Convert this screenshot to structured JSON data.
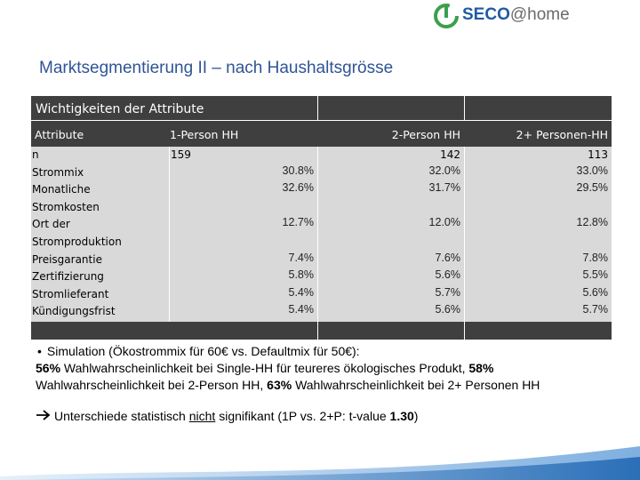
{
  "logo": {
    "brand": "SECO",
    "suffix": "@home"
  },
  "title": "Marktsegmentierung II – nach Haushaltsgrösse",
  "table": {
    "caption": "Wichtigkeiten der Attribute",
    "columns": [
      "Attribute",
      "1-Person HH",
      "2-Person HH",
      "2+  Personen-HH"
    ],
    "rows": [
      {
        "label": [
          "n"
        ],
        "cells": [
          "159",
          "142",
          "113"
        ]
      },
      {
        "label": [
          "Strommix"
        ],
        "cells": [
          "30.8%",
          "32.0%",
          "33.0%"
        ]
      },
      {
        "label": [
          "Monatliche",
          "Stromkosten"
        ],
        "cells": [
          "32.6%",
          "31.7%",
          "29.5%"
        ]
      },
      {
        "label": [
          "Ort der",
          "Stromproduktion"
        ],
        "cells": [
          "12.7%",
          "12.0%",
          "12.8%"
        ]
      },
      {
        "label": [
          "Preisgarantie"
        ],
        "cells": [
          "7.4%",
          "7.6%",
          "7.8%"
        ]
      },
      {
        "label": [
          "Zertifizierung"
        ],
        "cells": [
          "5.8%",
          "5.6%",
          "5.5%"
        ]
      },
      {
        "label": [
          "Stromlieferant"
        ],
        "cells": [
          "5.4%",
          "5.7%",
          "5.6%"
        ]
      },
      {
        "label": [
          "Kündigungsfrist"
        ],
        "cells": [
          "5.4%",
          "5.6%",
          "5.7%"
        ]
      }
    ]
  },
  "notes": [
    {
      "lines": [
        [
          "Simulation (Ökostrommix für 60€ vs. Defaultmix für 50€):"
        ],
        [
          {
            "text": "56%",
            "style": "bold"
          },
          " Wahlwahrscheinlichkeit bei Single-HH für teureres ökologisches Produkt, ",
          {
            "text": "58%",
            "style": "bold"
          }
        ],
        [
          "Wahlwahrscheinlichkeit bei 2-Person HH, ",
          {
            "text": "63%",
            "style": "bold"
          },
          " Wahlwahrscheinlichkeit bei 2+ Personen HH"
        ]
      ]
    },
    {
      "lines": [
        [
          "Unterschiede statistisch ",
          {
            "text": "nicht",
            "style": "underline"
          },
          " signifikant (1P vs. 2+P: t-value ",
          {
            "text": "1.30",
            "style": "bold"
          },
          ")"
        ]
      ]
    }
  ]
}
